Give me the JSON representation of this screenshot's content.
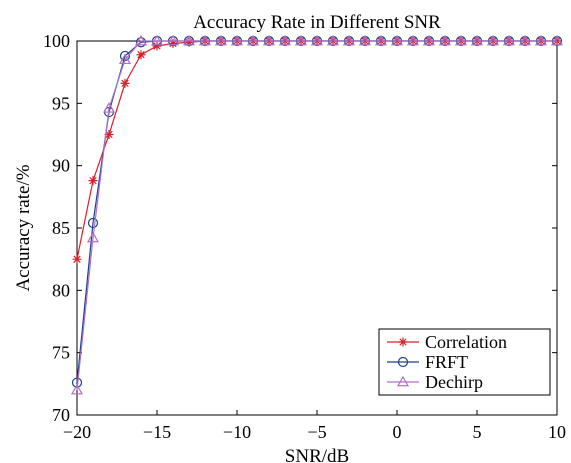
{
  "chart_data": {
    "type": "line",
    "title": "Accuracy Rate in Different SNR",
    "xlabel": "SNR/dB",
    "ylabel": "Accuracy rate/%",
    "xlim": [
      -20,
      10
    ],
    "ylim": [
      70,
      100
    ],
    "xticks": [
      -20,
      -15,
      -10,
      -5,
      0,
      5,
      10
    ],
    "yticks": [
      70,
      75,
      80,
      85,
      90,
      95,
      100
    ],
    "xtick_labels": [
      "−20",
      "−15",
      "−10",
      "−5",
      "0",
      "5",
      "10"
    ],
    "ytick_labels": [
      "70",
      "75",
      "80",
      "85",
      "90",
      "95",
      "100"
    ],
    "grid": false,
    "legend_position": "bottom-right",
    "x": [
      -20,
      -19,
      -18,
      -17,
      -16,
      -15,
      -14,
      -13,
      -12,
      -11,
      -10,
      -9,
      -8,
      -7,
      -6,
      -5,
      -4,
      -3,
      -2,
      -1,
      0,
      1,
      2,
      3,
      4,
      5,
      6,
      7,
      8,
      9,
      10
    ],
    "series": [
      {
        "name": "Correlation",
        "color": "#d6202a",
        "marker": "star",
        "values": [
          82.5,
          88.8,
          92.5,
          96.6,
          98.9,
          99.6,
          99.8,
          99.9,
          100,
          100,
          100,
          100,
          100,
          100,
          100,
          100,
          100,
          100,
          100,
          100,
          100,
          100,
          100,
          100,
          100,
          100,
          100,
          100,
          100,
          100,
          100
        ]
      },
      {
        "name": "FRFT",
        "color": "#1f3f8f",
        "marker": "circle",
        "values": [
          72.6,
          85.4,
          94.3,
          98.8,
          99.9,
          100,
          100,
          100,
          100,
          100,
          100,
          100,
          100,
          100,
          100,
          100,
          100,
          100,
          100,
          100,
          100,
          100,
          100,
          100,
          100,
          100,
          100,
          100,
          100,
          100,
          100
        ]
      },
      {
        "name": "Dechirp",
        "color": "#b070c0",
        "marker": "triangle",
        "values": [
          72.0,
          84.2,
          94.6,
          98.5,
          100,
          100,
          100,
          100,
          100,
          100,
          100,
          100,
          100,
          100,
          100,
          100,
          100,
          100,
          100,
          100,
          100,
          100,
          100,
          100,
          100,
          100,
          100,
          100,
          100,
          100,
          100
        ]
      }
    ]
  }
}
